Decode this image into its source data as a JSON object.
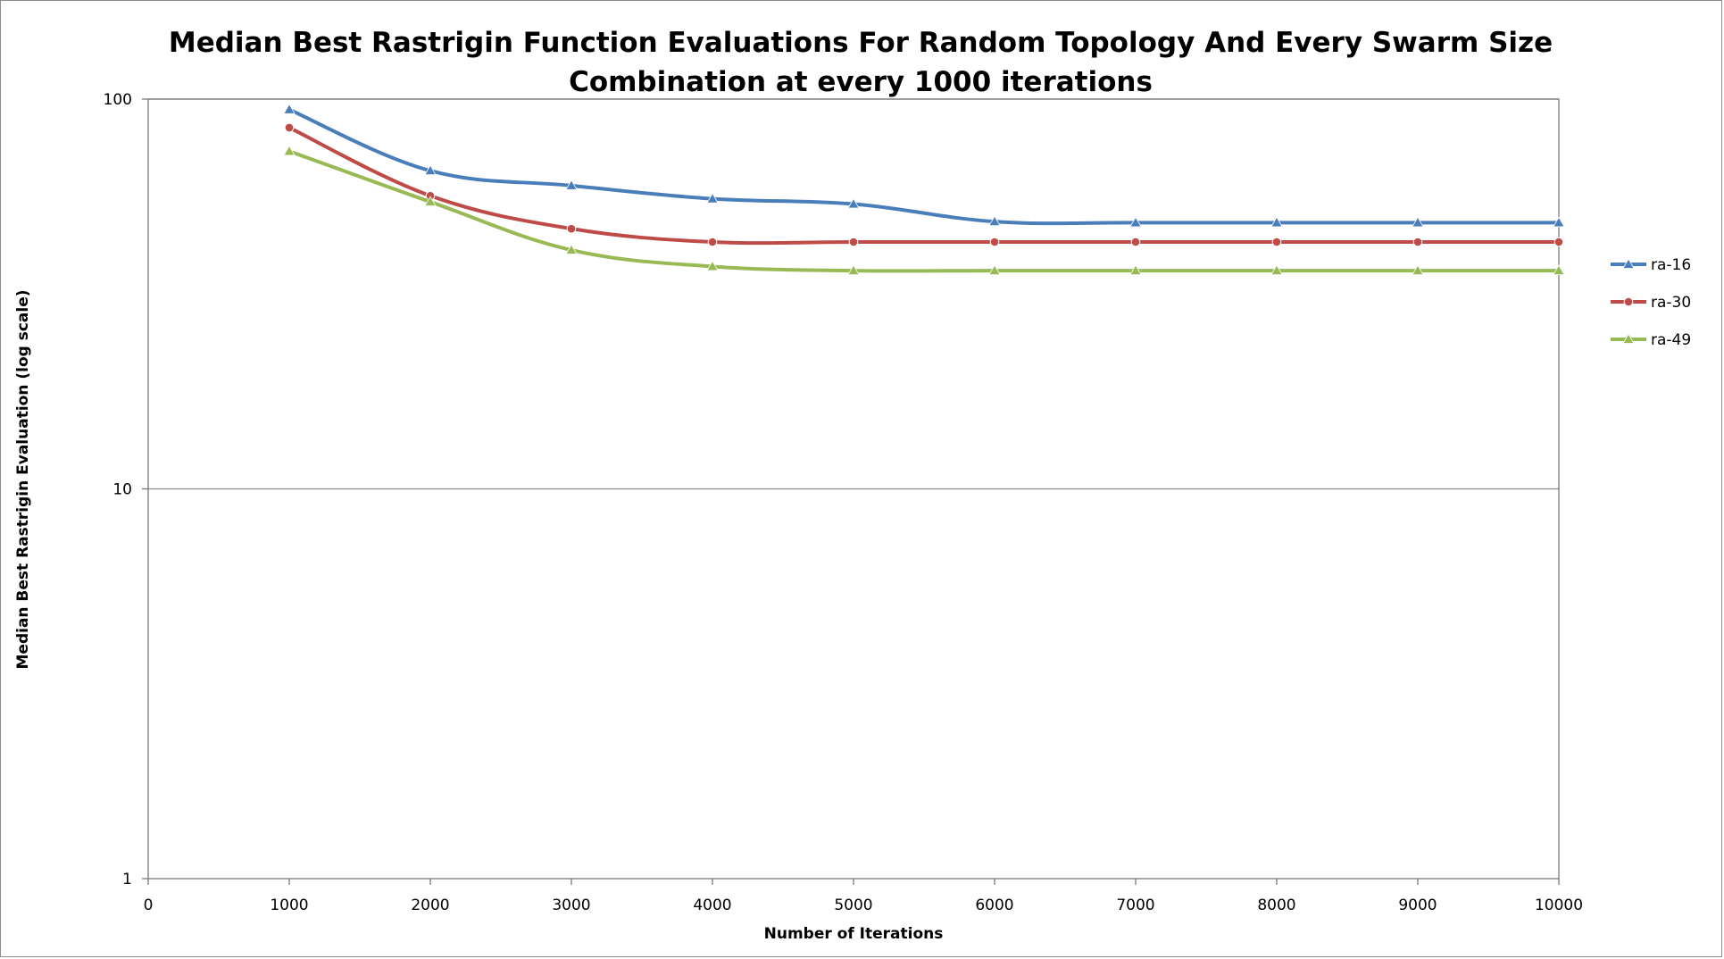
{
  "chart_data": {
    "type": "line",
    "title_lines": [
      "Median Best Rastrigin Function Evaluations For Random Topology And Every Swarm Size",
      "Combination at every 1000 iterations"
    ],
    "xlabel": "Number of Iterations",
    "ylabel": "Median Best Rastrigin Evaluation (log scale)",
    "xlim": [
      0,
      10000
    ],
    "ylim": [
      1,
      100
    ],
    "yscale": "log",
    "xticks": [
      0,
      1000,
      2000,
      3000,
      4000,
      5000,
      6000,
      7000,
      8000,
      9000,
      10000
    ],
    "yticks": [
      1,
      10,
      100
    ],
    "xtick_labels": [
      "0",
      "1000",
      "2000",
      "3000",
      "4000",
      "5000",
      "6000",
      "7000",
      "8000",
      "9000",
      "10000"
    ],
    "ytick_labels": [
      "1",
      "10",
      "100"
    ],
    "grid": "horizontal major",
    "legend_position": "right",
    "x": [
      1000,
      2000,
      3000,
      4000,
      5000,
      6000,
      7000,
      8000,
      9000,
      10000
    ],
    "series": [
      {
        "name": "ra-16",
        "color": "#4a7ebb",
        "marker": "triangle",
        "values": [
          94,
          65.5,
          60,
          55.5,
          53.8,
          48.5,
          48.2,
          48.2,
          48.2,
          48.2
        ]
      },
      {
        "name": "ra-30",
        "color": "#be4b48",
        "marker": "circle",
        "values": [
          84.5,
          56.5,
          46.5,
          43,
          43,
          43,
          43,
          43,
          43,
          43
        ]
      },
      {
        "name": "ra-49",
        "color": "#98b954",
        "marker": "triangle",
        "values": [
          73.5,
          54.5,
          41,
          37.2,
          36.3,
          36.3,
          36.3,
          36.3,
          36.3,
          36.3
        ]
      }
    ]
  }
}
